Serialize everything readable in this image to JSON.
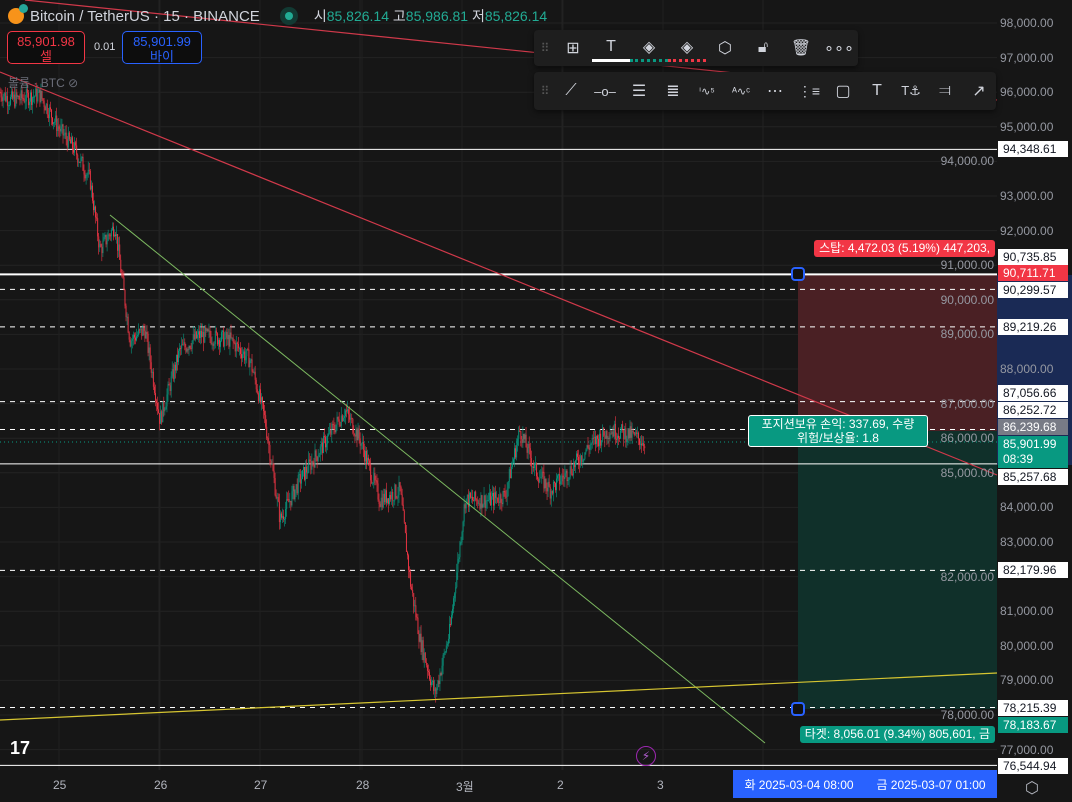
{
  "header": {
    "symbol": "Bitcoin / TetherUS · 15 · BINANCE",
    "open_label": "시",
    "open": "85,826.14",
    "high_label": "고",
    "high": "85,986.81",
    "low_label": "저",
    "low": "85,826.14"
  },
  "trade": {
    "sell_price": "85,901.98",
    "sell_label": "셀",
    "spread": "0.01",
    "buy_price": "85,901.99",
    "buy_label": "바이"
  },
  "volume_label": "볼륨 · BTC",
  "toolbar_top": [
    "layout-add-icon",
    "text-color-icon",
    "fill-green-icon",
    "fill-red-icon",
    "settings-icon",
    "unlock-icon",
    "trash-icon",
    "more-icon"
  ],
  "toolbar_draw": [
    "trend-line-icon",
    "horizontal-ray-icon",
    "fib-levels-icon",
    "fib-extension-icon",
    "wave-15-icon",
    "wave-ac-icon",
    "channel-icon",
    "channel-dotted-icon",
    "rectangle-icon",
    "text-icon",
    "anchored-text-icon",
    "volume-profile-icon",
    "forecast-icon"
  ],
  "price_axis": [
    "98,000.00",
    "97,000.00",
    "96,000.00",
    "95,000.00",
    "94,000.00",
    "93,000.00",
    "92,000.00",
    "91,000.00",
    "90,000.00",
    "89,000.00",
    "88,000.00",
    "87,000.00",
    "86,000.00",
    "85,000.00",
    "84,000.00",
    "83,000.00",
    "82,000.00",
    "81,000.00",
    "80,000.00",
    "79,000.00",
    "78,000.00",
    "77,000.00"
  ],
  "price_labels": [
    "94,348.61",
    "90,735.85",
    "90,299.57",
    "89,219.26",
    "87,056.66",
    "86,252.72",
    "85,257.68",
    "82,179.96",
    "78,215.39",
    "76,544.94"
  ],
  "stop": {
    "label": "스탑: 4,472.03 (5.19%) 447,203,",
    "price": "90,711.71"
  },
  "position": {
    "line1": "포지션보유 손익: 337.69, 수량",
    "line2": "위험/보상율: 1.8",
    "entry_price": "86,239.68"
  },
  "current": {
    "price": "85,901.99",
    "countdown": "08:39"
  },
  "target": {
    "label": "타겟: 8,056.01 (9.34%) 805,601, 금",
    "price": "78,183.67"
  },
  "time_axis": [
    "25",
    "26",
    "27",
    "28",
    "3월",
    "2",
    "3"
  ],
  "time_range": {
    "start": "화 2025-03-04   08:00",
    "end": "금 2025-03-07   01:00"
  },
  "colors": {
    "up": "#089981",
    "down": "#f23645",
    "stop_zone": "#4a2024",
    "target_zone": "#10302a",
    "accent": "#2962ff"
  },
  "chart_data": {
    "type": "candlestick",
    "path": [
      [
        0,
        96000
      ],
      [
        10,
        95775
      ],
      [
        40,
        95920
      ],
      [
        60,
        94900
      ],
      [
        75,
        94330
      ],
      [
        90,
        93460
      ],
      [
        100,
        91440
      ],
      [
        115,
        92160
      ],
      [
        130,
        88840
      ],
      [
        145,
        89130
      ],
      [
        160,
        86530
      ],
      [
        180,
        88550
      ],
      [
        200,
        88980
      ],
      [
        230,
        88840
      ],
      [
        250,
        88260
      ],
      [
        265,
        86530
      ],
      [
        280,
        83640
      ],
      [
        300,
        84800
      ],
      [
        320,
        85660
      ],
      [
        345,
        86820
      ],
      [
        360,
        85950
      ],
      [
        380,
        84210
      ],
      [
        400,
        84500
      ],
      [
        410,
        81900
      ],
      [
        420,
        80170
      ],
      [
        435,
        78580
      ],
      [
        450,
        80460
      ],
      [
        465,
        84210
      ],
      [
        490,
        84210
      ],
      [
        505,
        84350
      ],
      [
        520,
        86240
      ],
      [
        535,
        85080
      ],
      [
        550,
        84500
      ],
      [
        570,
        85080
      ],
      [
        590,
        85800
      ],
      [
        610,
        86240
      ],
      [
        630,
        86100
      ],
      [
        645,
        85890
      ]
    ]
  }
}
